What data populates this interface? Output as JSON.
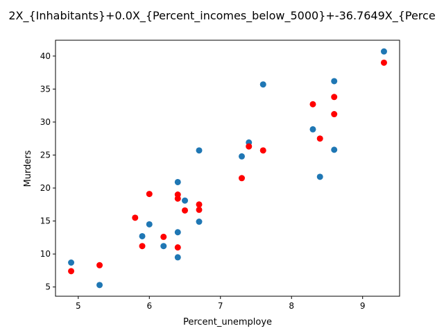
{
  "chart_data": {
    "type": "scatter",
    "title": "2X_{Inhabitants}+0.0X_{Percent_incomes_below_5000}+-36.7649X_{Perce",
    "xlabel": "Percent_unemploye",
    "ylabel": "Murders",
    "xlim": [
      4.68,
      9.52
    ],
    "ylim": [
      3.6,
      42.4
    ],
    "x_ticks": [
      5,
      6,
      7,
      8,
      9
    ],
    "y_ticks": [
      5,
      10,
      15,
      20,
      25,
      30,
      35,
      40
    ],
    "grid": false,
    "legend": "none",
    "series": [
      {
        "color": "#1f77b4",
        "points": [
          [
            9.3,
            40.7
          ],
          [
            8.6,
            36.2
          ],
          [
            7.6,
            35.7
          ],
          [
            8.3,
            28.9
          ],
          [
            7.4,
            26.9
          ],
          [
            6.7,
            25.7
          ],
          [
            8.6,
            25.8
          ],
          [
            7.3,
            24.8
          ],
          [
            8.4,
            21.7
          ],
          [
            6.4,
            20.9
          ],
          [
            6.5,
            18.1
          ],
          [
            6.7,
            14.9
          ],
          [
            6.0,
            14.5
          ],
          [
            6.4,
            13.3
          ],
          [
            5.9,
            12.7
          ],
          [
            6.2,
            11.2
          ],
          [
            6.4,
            9.5
          ],
          [
            4.9,
            8.7
          ],
          [
            5.3,
            5.3
          ]
        ]
      },
      {
        "color": "#ff0000",
        "points": [
          [
            9.3,
            39.0
          ],
          [
            8.6,
            33.8
          ],
          [
            8.3,
            32.7
          ],
          [
            8.6,
            31.2
          ],
          [
            8.4,
            27.5
          ],
          [
            7.4,
            26.3
          ],
          [
            7.6,
            25.7
          ],
          [
            7.3,
            21.5
          ],
          [
            6.0,
            19.1
          ],
          [
            6.4,
            19.0
          ],
          [
            6.4,
            18.4
          ],
          [
            6.7,
            17.5
          ],
          [
            6.7,
            16.7
          ],
          [
            6.5,
            16.6
          ],
          [
            5.8,
            15.5
          ],
          [
            6.2,
            12.6
          ],
          [
            5.9,
            11.2
          ],
          [
            6.4,
            11.0
          ],
          [
            5.3,
            8.3
          ],
          [
            4.9,
            7.4
          ]
        ]
      }
    ]
  }
}
